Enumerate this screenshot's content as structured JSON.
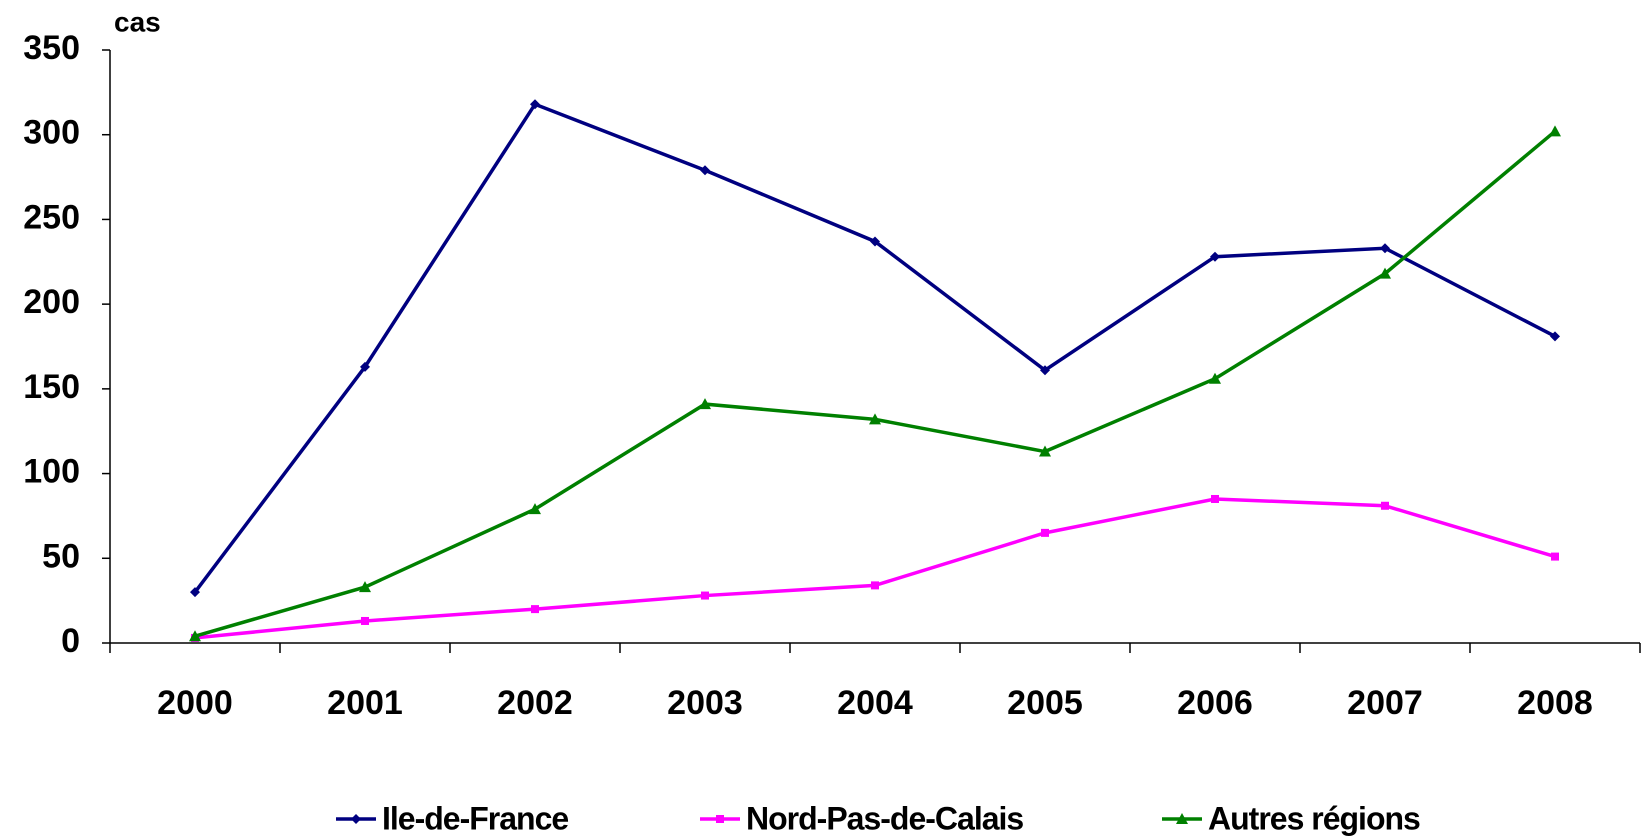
{
  "chart_data": {
    "type": "line",
    "y_label": "cas",
    "categories": [
      "2000",
      "2001",
      "2002",
      "2003",
      "2004",
      "2005",
      "2006",
      "2007",
      "2008"
    ],
    "series": [
      {
        "name": "Ile-de-France",
        "color": "#000080",
        "marker": "diamond",
        "values": [
          30,
          163,
          318,
          279,
          237,
          161,
          228,
          233,
          181
        ]
      },
      {
        "name": "Nord-Pas-de-Calais",
        "color": "#ff00ff",
        "marker": "square",
        "values": [
          3,
          13,
          20,
          28,
          34,
          65,
          85,
          81,
          51
        ]
      },
      {
        "name": "Autres régions",
        "color": "#008000",
        "marker": "triangle",
        "values": [
          4,
          33,
          79,
          141,
          132,
          113,
          156,
          218,
          302
        ]
      }
    ],
    "ylim": [
      0,
      350
    ],
    "yticks": [
      0,
      50,
      100,
      150,
      200,
      250,
      300,
      350
    ],
    "grid": false,
    "legend": "bottom"
  }
}
